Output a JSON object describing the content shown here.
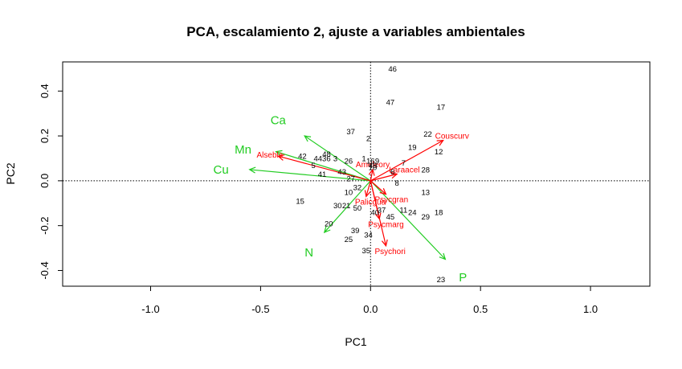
{
  "colors": {
    "species": "#ff0000",
    "environment": "#22cc22",
    "sites": "#000000"
  },
  "chart_data": {
    "type": "scatter",
    "title": "PCA, escalamiento 2, ajuste a variables ambientales",
    "xlabel": "PC1",
    "ylabel": "PC2",
    "xlim": [
      -1.4,
      1.27
    ],
    "ylim": [
      -0.47,
      0.53
    ],
    "xticks": [
      -1.0,
      -0.5,
      0.0,
      0.5,
      1.0
    ],
    "xtick_labels": [
      "-1.0",
      "-0.5",
      "0.0",
      "0.5",
      "1.0"
    ],
    "yticks": [
      -0.4,
      -0.2,
      0.0,
      0.2,
      0.4
    ],
    "ytick_labels": [
      "-0.4",
      "-0.2",
      "0.0",
      "0.2",
      "0.4"
    ],
    "reference_lines": {
      "x": 0,
      "y": 0,
      "style": "dotted"
    },
    "sites": [
      {
        "label": "46",
        "x": 0.1,
        "y": 0.5
      },
      {
        "label": "47",
        "x": 0.09,
        "y": 0.35
      },
      {
        "label": "17",
        "x": 0.32,
        "y": 0.33
      },
      {
        "label": "37",
        "x": -0.09,
        "y": 0.22
      },
      {
        "label": "22",
        "x": 0.26,
        "y": 0.21
      },
      {
        "label": "2",
        "x": -0.01,
        "y": 0.19
      },
      {
        "label": "19",
        "x": 0.19,
        "y": 0.15
      },
      {
        "label": "12",
        "x": 0.31,
        "y": 0.13
      },
      {
        "label": "48",
        "x": -0.2,
        "y": 0.12
      },
      {
        "label": "42",
        "x": -0.31,
        "y": 0.11
      },
      {
        "label": "4436",
        "x": -0.22,
        "y": 0.1
      },
      {
        "label": "3",
        "x": -0.16,
        "y": 0.1
      },
      {
        "label": "26",
        "x": -0.1,
        "y": 0.09
      },
      {
        "label": "1",
        "x": -0.03,
        "y": 0.1
      },
      {
        "label": "16",
        "x": 0.0,
        "y": 0.09
      },
      {
        "label": "9",
        "x": 0.03,
        "y": 0.09
      },
      {
        "label": "7",
        "x": 0.15,
        "y": 0.08
      },
      {
        "label": "5",
        "x": -0.26,
        "y": 0.07
      },
      {
        "label": "10",
        "x": 0.01,
        "y": 0.06
      },
      {
        "label": "49",
        "x": 0.01,
        "y": 0.07
      },
      {
        "label": "28",
        "x": 0.25,
        "y": 0.05
      },
      {
        "label": "41",
        "x": -0.22,
        "y": 0.03
      },
      {
        "label": "43",
        "x": -0.13,
        "y": 0.04
      },
      {
        "label": "6",
        "x": 0.1,
        "y": 0.04
      },
      {
        "label": "27",
        "x": -0.09,
        "y": 0.01
      },
      {
        "label": "8",
        "x": 0.12,
        "y": -0.01
      },
      {
        "label": "10",
        "x": -0.1,
        "y": -0.05
      },
      {
        "label": "32",
        "x": -0.06,
        "y": -0.03
      },
      {
        "label": "13",
        "x": 0.25,
        "y": -0.05
      },
      {
        "label": "15",
        "x": -0.32,
        "y": -0.09
      },
      {
        "label": "30",
        "x": -0.15,
        "y": -0.11
      },
      {
        "label": "21",
        "x": -0.11,
        "y": -0.11
      },
      {
        "label": "50",
        "x": -0.06,
        "y": -0.12
      },
      {
        "label": "37",
        "x": 0.05,
        "y": -0.13
      },
      {
        "label": "40",
        "x": 0.02,
        "y": -0.14
      },
      {
        "label": "11",
        "x": 0.15,
        "y": -0.13
      },
      {
        "label": "24",
        "x": 0.19,
        "y": -0.14
      },
      {
        "label": "18",
        "x": 0.31,
        "y": -0.14
      },
      {
        "label": "45",
        "x": 0.09,
        "y": -0.16
      },
      {
        "label": "29",
        "x": 0.25,
        "y": -0.16
      },
      {
        "label": "20",
        "x": -0.19,
        "y": -0.19
      },
      {
        "label": "39",
        "x": -0.07,
        "y": -0.22
      },
      {
        "label": "34",
        "x": -0.01,
        "y": -0.24
      },
      {
        "label": "25",
        "x": -0.1,
        "y": -0.26
      },
      {
        "label": "35",
        "x": -0.02,
        "y": -0.31
      },
      {
        "label": "23",
        "x": 0.32,
        "y": -0.44
      }
    ],
    "species": [
      {
        "label": "Couscurv",
        "x": 0.33,
        "y": 0.18,
        "label_pos": "right"
      },
      {
        "label": "Alsebla",
        "x": -0.42,
        "y": 0.11,
        "label_pos": "left"
      },
      {
        "label": "Ameleory",
        "x": 0.01,
        "y": 0.05,
        "label_pos": "above"
      },
      {
        "label": "Laraacel",
        "x": 0.12,
        "y": 0.03,
        "label_pos": "right"
      },
      {
        "label": "Psychori",
        "x": 0.07,
        "y": -0.29,
        "label_pos": "below"
      },
      {
        "label": "Psycmarg",
        "x": 0.04,
        "y": -0.17,
        "label_pos": "below"
      },
      {
        "label": "Palicgua",
        "x": -0.02,
        "y": -0.07,
        "label_pos": "below"
      },
      {
        "label": "Psycgran",
        "x": 0.07,
        "y": -0.06,
        "label_pos": "below"
      }
    ],
    "environmental_vectors": [
      {
        "label": "Ca",
        "x": -0.3,
        "y": 0.2,
        "label_x": -0.42,
        "label_y": 0.27
      },
      {
        "label": "Mn",
        "x": -0.43,
        "y": 0.13,
        "label_x": -0.58,
        "label_y": 0.14
      },
      {
        "label": "Cu",
        "x": -0.55,
        "y": 0.05,
        "label_x": -0.68,
        "label_y": 0.05
      },
      {
        "label": "N",
        "x": -0.21,
        "y": -0.23,
        "label_x": -0.28,
        "label_y": -0.32
      },
      {
        "label": "P",
        "x": 0.34,
        "y": -0.35,
        "label_x": 0.42,
        "label_y": -0.43
      }
    ]
  }
}
